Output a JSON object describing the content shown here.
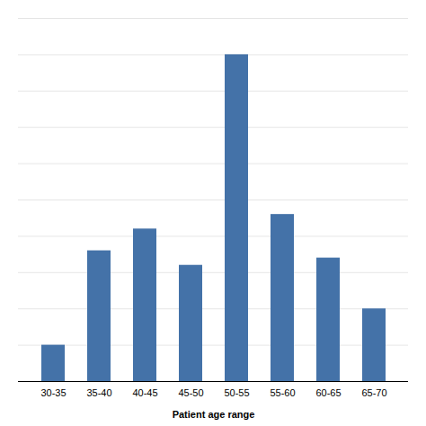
{
  "chart_data": {
    "type": "bar",
    "xlabel": "Patient age range",
    "categories": [
      "30-35",
      "35-40",
      "40-45",
      "45-50",
      "50-55",
      "55-60",
      "60-65",
      "65-70"
    ],
    "values": [
      5,
      18,
      21,
      16,
      45,
      23,
      17,
      10
    ],
    "color": "#4472A8",
    "ylim": [
      0,
      50
    ],
    "yticks": [
      0,
      5,
      10,
      15,
      20,
      25,
      30,
      35,
      40,
      45,
      50
    ],
    "grid": true,
    "tick_labels": "x"
  }
}
